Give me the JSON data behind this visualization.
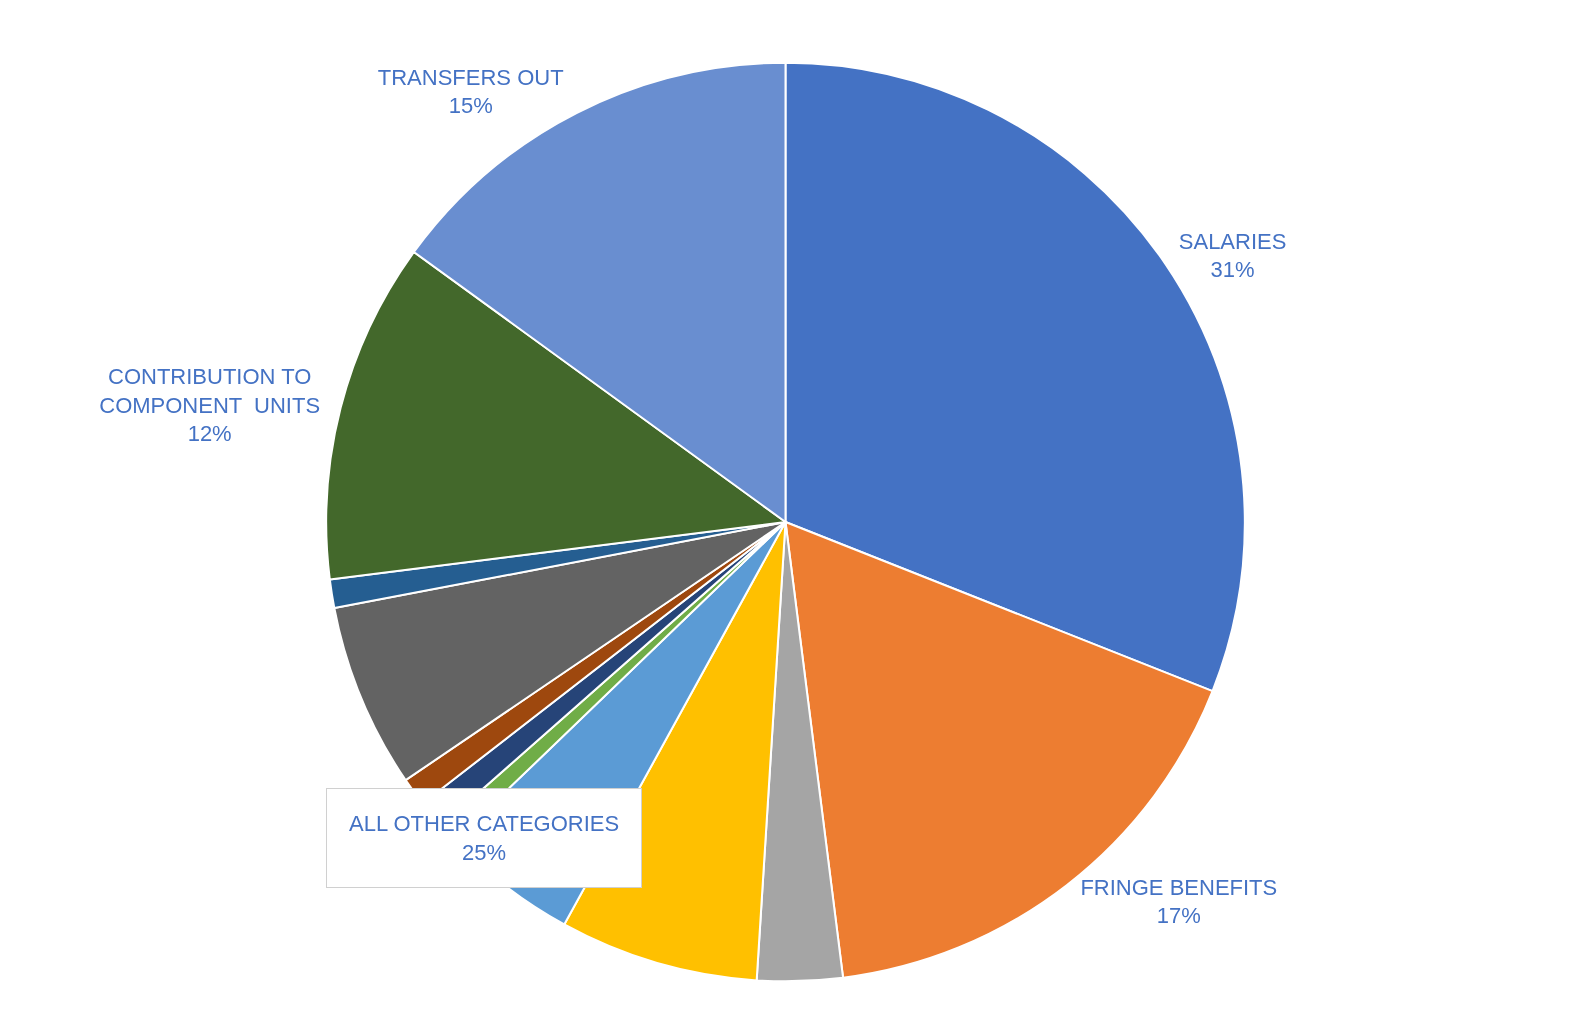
{
  "chart_data": {
    "type": "pie",
    "categories": [
      "SALARIES",
      "FRINGE BENEFITS",
      null,
      null,
      null,
      null,
      null,
      null,
      null,
      null,
      "CONTRIBUTION TO\nCOMPONENT  UNITS",
      "TRANSFERS OUT"
    ],
    "values": [
      31,
      17,
      3,
      7,
      4.8,
      0.7,
      1,
      1,
      6.5,
      1,
      12,
      15
    ],
    "value_labels": [
      "31%",
      "17%",
      null,
      null,
      null,
      null,
      null,
      null,
      null,
      null,
      "12%",
      "15%"
    ],
    "colors": [
      "#4472c4",
      "#ed7d31",
      "#a5a5a5",
      "#ffc000",
      "#5b9bd5",
      "#70ad47",
      "#264478",
      "#9e480e",
      "#636363",
      "#255e91",
      "#43682b",
      "#698ed0"
    ],
    "annotations": [
      "ALL OTHER CATEGORIES\n25%"
    ],
    "legend": false
  }
}
